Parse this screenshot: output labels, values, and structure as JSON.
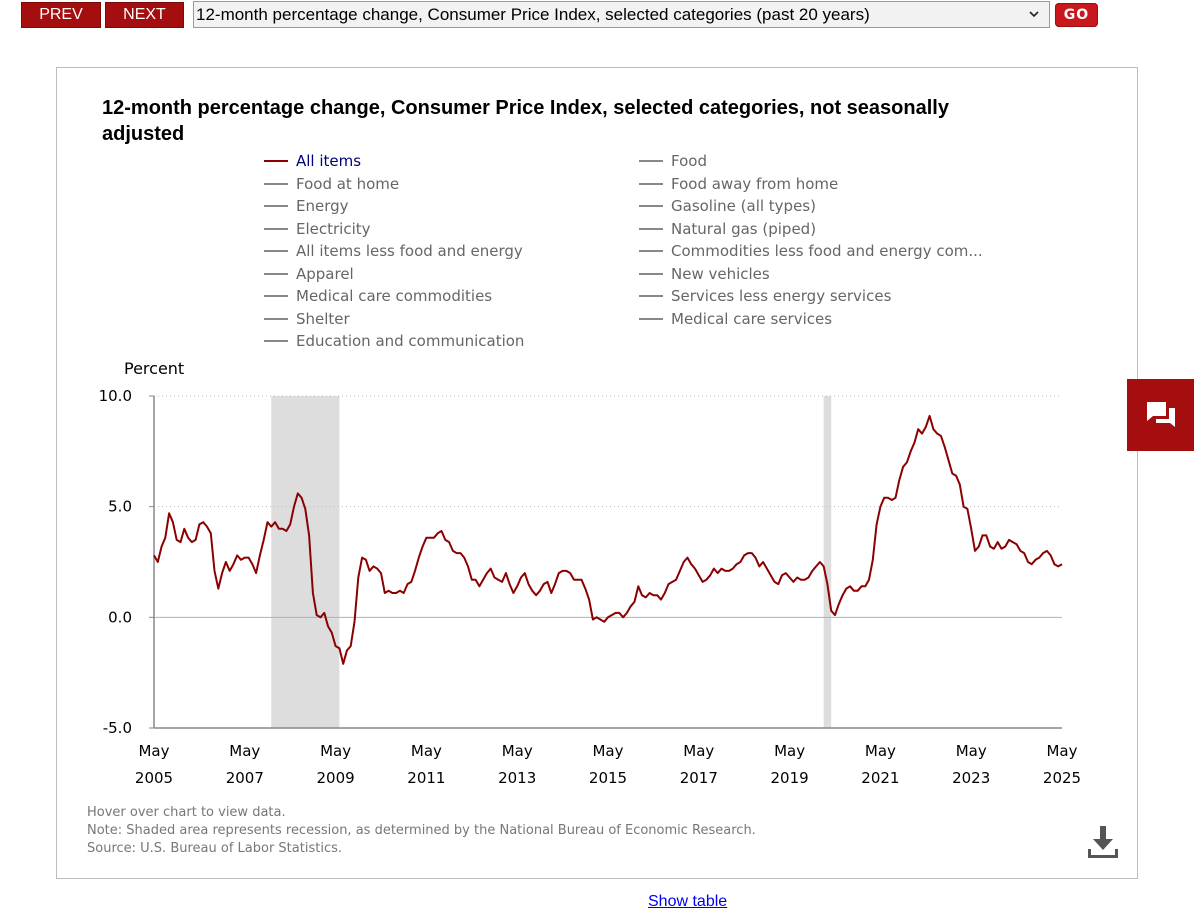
{
  "nav": {
    "prev_label": "PREV",
    "next_label": "NEXT",
    "selected_option": "12-month percentage change, Consumer Price Index, selected categories (past 20 years)",
    "go_label": "GO"
  },
  "chart_data": {
    "type": "line",
    "title": "12-month percentage change, Consumer Price Index, selected categories, not seasonally adjusted",
    "ylabel": "Percent",
    "xlabel": "",
    "ylim": [
      -5,
      10
    ],
    "y_ticks": [
      "10.0",
      "5.0",
      "0.0",
      "-5.0"
    ],
    "y_tick_values": [
      10,
      5,
      0,
      -5
    ],
    "x_ticks": [
      {
        "month": "May",
        "year": "2005"
      },
      {
        "month": "May",
        "year": "2007"
      },
      {
        "month": "May",
        "year": "2009"
      },
      {
        "month": "May",
        "year": "2011"
      },
      {
        "month": "May",
        "year": "2013"
      },
      {
        "month": "May",
        "year": "2015"
      },
      {
        "month": "May",
        "year": "2017"
      },
      {
        "month": "May",
        "year": "2019"
      },
      {
        "month": "May",
        "year": "2021"
      },
      {
        "month": "May",
        "year": "2023"
      },
      {
        "month": "May",
        "year": "2025"
      }
    ],
    "x_range": [
      "2005-05",
      "2025-05"
    ],
    "grid": "horizontal dotted",
    "legend_placement": "top",
    "legend": [
      "All items",
      "Food",
      "Food at home",
      "Food away from home",
      "Energy",
      "Gasoline (all types)",
      "Electricity",
      "Natural gas (piped)",
      "All items less food and energy",
      "Commodities less food and energy com...",
      "Apparel",
      "New vehicles",
      "Medical care commodities",
      "Services less energy services",
      "Shelter",
      "Medical care services",
      "Education and communication"
    ],
    "recessions": [
      {
        "start": "2007-12",
        "end": "2009-06"
      },
      {
        "start": "2020-02",
        "end": "2020-04"
      }
    ],
    "series": [
      {
        "name": "All items",
        "color": "#8b0000",
        "points": [
          [
            "2005-05",
            2.8
          ],
          [
            "2005-06",
            2.5
          ],
          [
            "2005-07",
            3.2
          ],
          [
            "2005-08",
            3.6
          ],
          [
            "2005-09",
            4.7
          ],
          [
            "2005-10",
            4.3
          ],
          [
            "2005-11",
            3.5
          ],
          [
            "2005-12",
            3.4
          ],
          [
            "2006-01",
            4.0
          ],
          [
            "2006-02",
            3.6
          ],
          [
            "2006-03",
            3.4
          ],
          [
            "2006-04",
            3.5
          ],
          [
            "2006-05",
            4.2
          ],
          [
            "2006-06",
            4.3
          ],
          [
            "2006-07",
            4.1
          ],
          [
            "2006-08",
            3.8
          ],
          [
            "2006-09",
            2.1
          ],
          [
            "2006-10",
            1.3
          ],
          [
            "2006-11",
            2.0
          ],
          [
            "2006-12",
            2.5
          ],
          [
            "2007-01",
            2.1
          ],
          [
            "2007-02",
            2.4
          ],
          [
            "2007-03",
            2.8
          ],
          [
            "2007-04",
            2.6
          ],
          [
            "2007-05",
            2.7
          ],
          [
            "2007-06",
            2.7
          ],
          [
            "2007-07",
            2.4
          ],
          [
            "2007-08",
            2.0
          ],
          [
            "2007-09",
            2.8
          ],
          [
            "2007-10",
            3.5
          ],
          [
            "2007-11",
            4.3
          ],
          [
            "2007-12",
            4.1
          ],
          [
            "2008-01",
            4.3
          ],
          [
            "2008-02",
            4.0
          ],
          [
            "2008-03",
            4.0
          ],
          [
            "2008-04",
            3.9
          ],
          [
            "2008-05",
            4.2
          ],
          [
            "2008-06",
            5.0
          ],
          [
            "2008-07",
            5.6
          ],
          [
            "2008-08",
            5.4
          ],
          [
            "2008-09",
            4.9
          ],
          [
            "2008-10",
            3.7
          ],
          [
            "2008-11",
            1.1
          ],
          [
            "2008-12",
            0.1
          ],
          [
            "2009-01",
            0.0
          ],
          [
            "2009-02",
            0.2
          ],
          [
            "2009-03",
            -0.4
          ],
          [
            "2009-04",
            -0.7
          ],
          [
            "2009-05",
            -1.3
          ],
          [
            "2009-06",
            -1.4
          ],
          [
            "2009-07",
            -2.1
          ],
          [
            "2009-08",
            -1.5
          ],
          [
            "2009-09",
            -1.3
          ],
          [
            "2009-10",
            -0.2
          ],
          [
            "2009-11",
            1.8
          ],
          [
            "2009-12",
            2.7
          ],
          [
            "2010-01",
            2.6
          ],
          [
            "2010-02",
            2.1
          ],
          [
            "2010-03",
            2.3
          ],
          [
            "2010-04",
            2.2
          ],
          [
            "2010-05",
            2.0
          ],
          [
            "2010-06",
            1.1
          ],
          [
            "2010-07",
            1.2
          ],
          [
            "2010-08",
            1.1
          ],
          [
            "2010-09",
            1.1
          ],
          [
            "2010-10",
            1.2
          ],
          [
            "2010-11",
            1.1
          ],
          [
            "2010-12",
            1.5
          ],
          [
            "2011-01",
            1.6
          ],
          [
            "2011-02",
            2.1
          ],
          [
            "2011-03",
            2.7
          ],
          [
            "2011-04",
            3.2
          ],
          [
            "2011-05",
            3.6
          ],
          [
            "2011-06",
            3.6
          ],
          [
            "2011-07",
            3.6
          ],
          [
            "2011-08",
            3.8
          ],
          [
            "2011-09",
            3.9
          ],
          [
            "2011-10",
            3.5
          ],
          [
            "2011-11",
            3.4
          ],
          [
            "2011-12",
            3.0
          ],
          [
            "2012-01",
            2.9
          ],
          [
            "2012-02",
            2.9
          ],
          [
            "2012-03",
            2.7
          ],
          [
            "2012-04",
            2.3
          ],
          [
            "2012-05",
            1.7
          ],
          [
            "2012-06",
            1.7
          ],
          [
            "2012-07",
            1.4
          ],
          [
            "2012-08",
            1.7
          ],
          [
            "2012-09",
            2.0
          ],
          [
            "2012-10",
            2.2
          ],
          [
            "2012-11",
            1.8
          ],
          [
            "2012-12",
            1.7
          ],
          [
            "2013-01",
            1.6
          ],
          [
            "2013-02",
            2.0
          ],
          [
            "2013-03",
            1.5
          ],
          [
            "2013-04",
            1.1
          ],
          [
            "2013-05",
            1.4
          ],
          [
            "2013-06",
            1.8
          ],
          [
            "2013-07",
            2.0
          ],
          [
            "2013-08",
            1.5
          ],
          [
            "2013-09",
            1.2
          ],
          [
            "2013-10",
            1.0
          ],
          [
            "2013-11",
            1.2
          ],
          [
            "2013-12",
            1.5
          ],
          [
            "2014-01",
            1.6
          ],
          [
            "2014-02",
            1.1
          ],
          [
            "2014-03",
            1.5
          ],
          [
            "2014-04",
            2.0
          ],
          [
            "2014-05",
            2.1
          ],
          [
            "2014-06",
            2.1
          ],
          [
            "2014-07",
            2.0
          ],
          [
            "2014-08",
            1.7
          ],
          [
            "2014-09",
            1.7
          ],
          [
            "2014-10",
            1.7
          ],
          [
            "2014-11",
            1.3
          ],
          [
            "2014-12",
            0.8
          ],
          [
            "2015-01",
            -0.1
          ],
          [
            "2015-02",
            0.0
          ],
          [
            "2015-03",
            -0.1
          ],
          [
            "2015-04",
            -0.2
          ],
          [
            "2015-05",
            0.0
          ],
          [
            "2015-06",
            0.1
          ],
          [
            "2015-07",
            0.2
          ],
          [
            "2015-08",
            0.2
          ],
          [
            "2015-09",
            0.0
          ],
          [
            "2015-10",
            0.2
          ],
          [
            "2015-11",
            0.5
          ],
          [
            "2015-12",
            0.7
          ],
          [
            "2016-01",
            1.4
          ],
          [
            "2016-02",
            1.0
          ],
          [
            "2016-03",
            0.9
          ],
          [
            "2016-04",
            1.1
          ],
          [
            "2016-05",
            1.0
          ],
          [
            "2016-06",
            1.0
          ],
          [
            "2016-07",
            0.8
          ],
          [
            "2016-08",
            1.1
          ],
          [
            "2016-09",
            1.5
          ],
          [
            "2016-10",
            1.6
          ],
          [
            "2016-11",
            1.7
          ],
          [
            "2016-12",
            2.1
          ],
          [
            "2017-01",
            2.5
          ],
          [
            "2017-02",
            2.7
          ],
          [
            "2017-03",
            2.4
          ],
          [
            "2017-04",
            2.2
          ],
          [
            "2017-05",
            1.9
          ],
          [
            "2017-06",
            1.6
          ],
          [
            "2017-07",
            1.7
          ],
          [
            "2017-08",
            1.9
          ],
          [
            "2017-09",
            2.2
          ],
          [
            "2017-10",
            2.0
          ],
          [
            "2017-11",
            2.2
          ],
          [
            "2017-12",
            2.1
          ],
          [
            "2018-01",
            2.1
          ],
          [
            "2018-02",
            2.2
          ],
          [
            "2018-03",
            2.4
          ],
          [
            "2018-04",
            2.5
          ],
          [
            "2018-05",
            2.8
          ],
          [
            "2018-06",
            2.9
          ],
          [
            "2018-07",
            2.9
          ],
          [
            "2018-08",
            2.7
          ],
          [
            "2018-09",
            2.3
          ],
          [
            "2018-10",
            2.5
          ],
          [
            "2018-11",
            2.2
          ],
          [
            "2018-12",
            1.9
          ],
          [
            "2019-01",
            1.6
          ],
          [
            "2019-02",
            1.5
          ],
          [
            "2019-03",
            1.9
          ],
          [
            "2019-04",
            2.0
          ],
          [
            "2019-05",
            1.8
          ],
          [
            "2019-06",
            1.6
          ],
          [
            "2019-07",
            1.8
          ],
          [
            "2019-08",
            1.7
          ],
          [
            "2019-09",
            1.7
          ],
          [
            "2019-10",
            1.8
          ],
          [
            "2019-11",
            2.1
          ],
          [
            "2019-12",
            2.3
          ],
          [
            "2020-01",
            2.5
          ],
          [
            "2020-02",
            2.3
          ],
          [
            "2020-03",
            1.5
          ],
          [
            "2020-04",
            0.3
          ],
          [
            "2020-05",
            0.1
          ],
          [
            "2020-06",
            0.6
          ],
          [
            "2020-07",
            1.0
          ],
          [
            "2020-08",
            1.3
          ],
          [
            "2020-09",
            1.4
          ],
          [
            "2020-10",
            1.2
          ],
          [
            "2020-11",
            1.2
          ],
          [
            "2020-12",
            1.4
          ],
          [
            "2021-01",
            1.4
          ],
          [
            "2021-02",
            1.7
          ],
          [
            "2021-03",
            2.6
          ],
          [
            "2021-04",
            4.2
          ],
          [
            "2021-05",
            5.0
          ],
          [
            "2021-06",
            5.4
          ],
          [
            "2021-07",
            5.4
          ],
          [
            "2021-08",
            5.3
          ],
          [
            "2021-09",
            5.4
          ],
          [
            "2021-10",
            6.2
          ],
          [
            "2021-11",
            6.8
          ],
          [
            "2021-12",
            7.0
          ],
          [
            "2022-01",
            7.5
          ],
          [
            "2022-02",
            7.9
          ],
          [
            "2022-03",
            8.5
          ],
          [
            "2022-04",
            8.3
          ],
          [
            "2022-05",
            8.6
          ],
          [
            "2022-06",
            9.1
          ],
          [
            "2022-07",
            8.5
          ],
          [
            "2022-08",
            8.3
          ],
          [
            "2022-09",
            8.2
          ],
          [
            "2022-10",
            7.7
          ],
          [
            "2022-11",
            7.1
          ],
          [
            "2022-12",
            6.5
          ],
          [
            "2023-01",
            6.4
          ],
          [
            "2023-02",
            6.0
          ],
          [
            "2023-03",
            5.0
          ],
          [
            "2023-04",
            4.9
          ],
          [
            "2023-05",
            4.0
          ],
          [
            "2023-06",
            3.0
          ],
          [
            "2023-07",
            3.2
          ],
          [
            "2023-08",
            3.7
          ],
          [
            "2023-09",
            3.7
          ],
          [
            "2023-10",
            3.2
          ],
          [
            "2023-11",
            3.1
          ],
          [
            "2023-12",
            3.4
          ],
          [
            "2024-01",
            3.1
          ],
          [
            "2024-02",
            3.2
          ],
          [
            "2024-03",
            3.5
          ],
          [
            "2024-04",
            3.4
          ],
          [
            "2024-05",
            3.3
          ],
          [
            "2024-06",
            3.0
          ],
          [
            "2024-07",
            2.9
          ],
          [
            "2024-08",
            2.5
          ],
          [
            "2024-09",
            2.4
          ],
          [
            "2024-10",
            2.6
          ],
          [
            "2024-11",
            2.7
          ],
          [
            "2024-12",
            2.9
          ],
          [
            "2025-01",
            3.0
          ],
          [
            "2025-02",
            2.8
          ],
          [
            "2025-03",
            2.4
          ],
          [
            "2025-04",
            2.3
          ],
          [
            "2025-05",
            2.4
          ]
        ]
      }
    ]
  },
  "notes": {
    "hover": "Hover over chart to view data.",
    "note": "Note: Shaded area represents recession, as determined by the National Bureau of Economic Research.",
    "source": "Source: U.S. Bureau of Labor Statistics."
  },
  "links": {
    "show_table": "Show table"
  },
  "icons": {
    "download": "download-icon",
    "feedback": "chat-icon",
    "select": "chevron-down-icon"
  },
  "colors": {
    "nav_button": "#a50e0e",
    "go_button": "#c8171d",
    "series_line": "#8b0000",
    "recession_shade": "#dddddd"
  }
}
